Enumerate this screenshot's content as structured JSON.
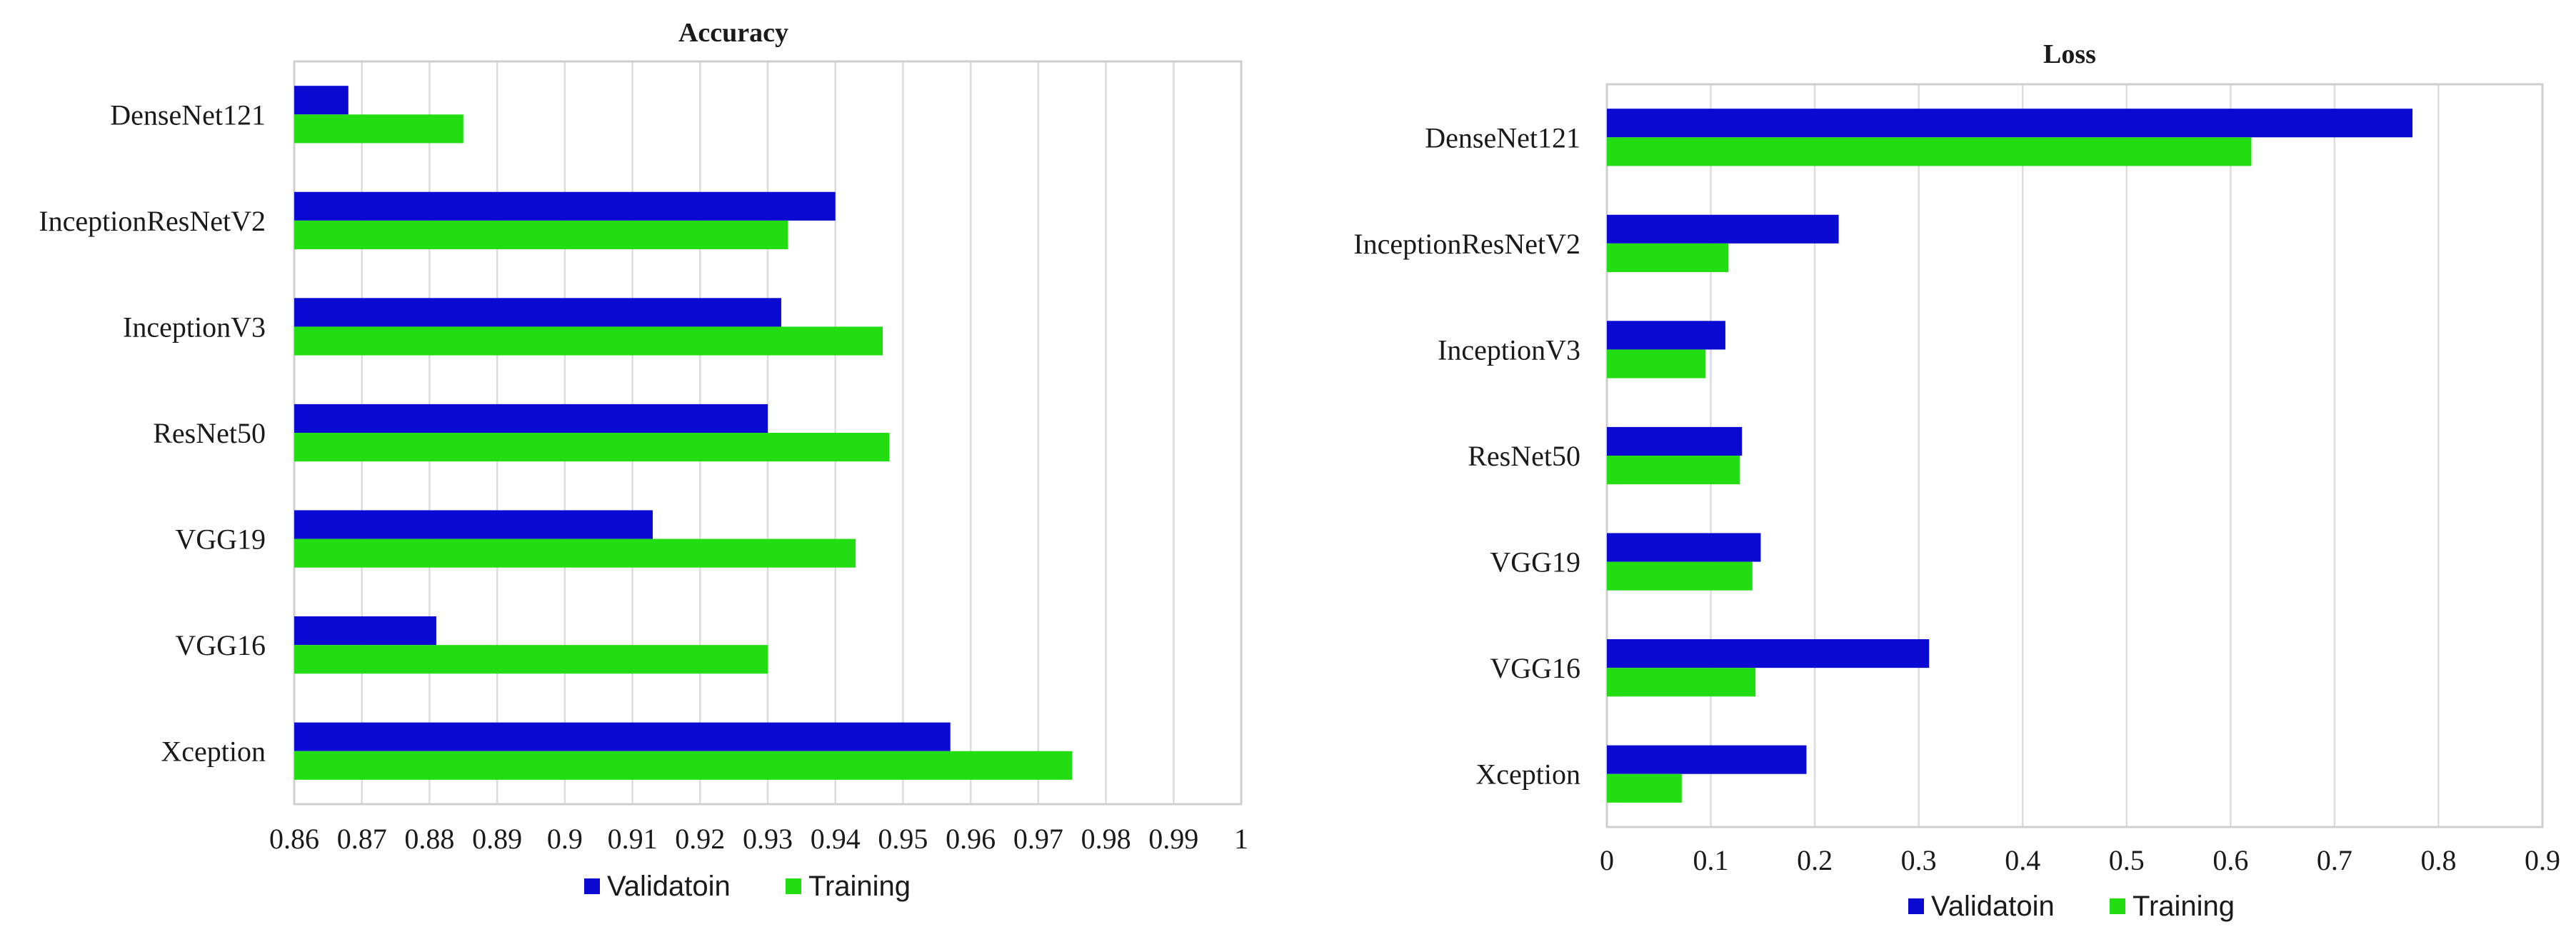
{
  "chart_data": [
    {
      "type": "bar",
      "orientation": "horizontal",
      "title": "Accuracy",
      "categories": [
        "DenseNet121",
        "InceptionResNetV2",
        "InceptionV3",
        "ResNet50",
        "VGG19",
        "VGG16",
        "Xception"
      ],
      "series": [
        {
          "name": "Validatoin",
          "color": "#0a0ad2",
          "values": [
            0.868,
            0.94,
            0.932,
            0.93,
            0.913,
            0.881,
            0.957
          ]
        },
        {
          "name": "Training",
          "color": "#22dd11",
          "values": [
            0.885,
            0.933,
            0.947,
            0.948,
            0.943,
            0.93,
            0.975
          ]
        }
      ],
      "xlim": [
        0.86,
        1
      ],
      "xticks": [
        "0.86",
        "0.87",
        "0.88",
        "0.89",
        "0.9",
        "0.91",
        "0.92",
        "0.93",
        "0.94",
        "0.95",
        "0.96",
        "0.97",
        "0.98",
        "0.99",
        "1"
      ],
      "grid": true,
      "legend": "bottom"
    },
    {
      "type": "bar",
      "orientation": "horizontal",
      "title": "Loss",
      "categories": [
        "DenseNet121",
        "InceptionResNetV2",
        "InceptionV3",
        "ResNet50",
        "VGG19",
        "VGG16",
        "Xception"
      ],
      "series": [
        {
          "name": "Validatoin",
          "color": "#0a0ad2",
          "values": [
            0.775,
            0.223,
            0.114,
            0.13,
            0.148,
            0.31,
            0.192
          ]
        },
        {
          "name": "Training",
          "color": "#22dd11",
          "values": [
            0.62,
            0.117,
            0.095,
            0.128,
            0.14,
            0.143,
            0.072
          ]
        }
      ],
      "xlim": [
        0,
        0.9
      ],
      "xticks": [
        "0",
        "0.1",
        "0.2",
        "0.3",
        "0.4",
        "0.5",
        "0.6",
        "0.7",
        "0.8",
        "0.9"
      ],
      "grid": true,
      "legend": "bottom"
    }
  ]
}
